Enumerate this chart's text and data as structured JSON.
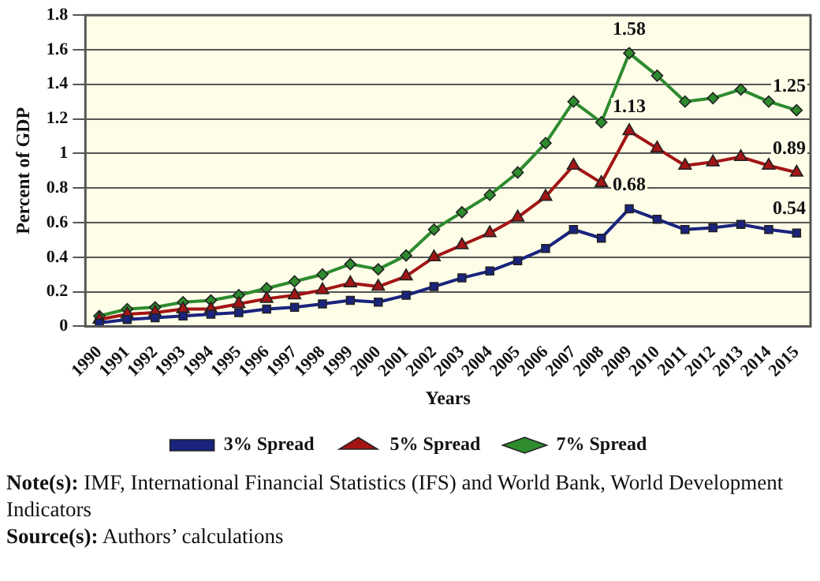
{
  "chart_data": {
    "type": "line",
    "xlabel": "Years",
    "ylabel": "Percent of GDP",
    "categories": [
      "1990",
      "1991",
      "1992",
      "1993",
      "1994",
      "1995",
      "1996",
      "1997",
      "1998",
      "1999",
      "2000",
      "2001",
      "2002",
      "2003",
      "2004",
      "2005",
      "2006",
      "2007",
      "2008",
      "2009",
      "2010",
      "2011",
      "2012",
      "2013",
      "2014",
      "2015"
    ],
    "series": [
      {
        "name": "3% Spread",
        "color": "#1a237e",
        "marker": "square",
        "values": [
          0.02,
          0.04,
          0.05,
          0.06,
          0.07,
          0.08,
          0.1,
          0.11,
          0.13,
          0.15,
          0.14,
          0.18,
          0.23,
          0.28,
          0.32,
          0.38,
          0.45,
          0.56,
          0.51,
          0.68,
          0.62,
          0.56,
          0.57,
          0.59,
          0.56,
          0.54
        ],
        "value_labels": [
          null,
          null,
          null,
          null,
          null,
          null,
          null,
          null,
          null,
          null,
          null,
          null,
          null,
          null,
          null,
          null,
          null,
          null,
          null,
          "0.68",
          null,
          null,
          null,
          null,
          null,
          "0.54"
        ]
      },
      {
        "name": "5% Spread",
        "color": "#a31515",
        "marker": "triangle",
        "values": [
          0.04,
          0.07,
          0.08,
          0.1,
          0.1,
          0.13,
          0.16,
          0.18,
          0.21,
          0.25,
          0.23,
          0.29,
          0.4,
          0.47,
          0.54,
          0.63,
          0.75,
          0.93,
          0.83,
          1.13,
          1.03,
          0.93,
          0.95,
          0.98,
          0.93,
          0.89
        ],
        "value_labels": [
          null,
          null,
          null,
          null,
          null,
          null,
          null,
          null,
          null,
          null,
          null,
          null,
          null,
          null,
          null,
          null,
          null,
          null,
          null,
          "1.13",
          null,
          null,
          null,
          null,
          null,
          "0.89"
        ]
      },
      {
        "name": "7% Spread",
        "color": "#2e8b2e",
        "marker": "diamond",
        "values": [
          0.06,
          0.1,
          0.11,
          0.14,
          0.15,
          0.18,
          0.22,
          0.26,
          0.3,
          0.36,
          0.33,
          0.41,
          0.56,
          0.66,
          0.76,
          0.89,
          1.06,
          1.3,
          1.18,
          1.58,
          1.45,
          1.3,
          1.32,
          1.37,
          1.3,
          1.25
        ],
        "value_labels": [
          null,
          null,
          null,
          null,
          null,
          null,
          null,
          null,
          null,
          null,
          null,
          null,
          null,
          null,
          null,
          null,
          null,
          null,
          null,
          "1.58",
          null,
          null,
          null,
          null,
          null,
          "1.25"
        ]
      }
    ],
    "ylim": [
      0,
      1.8
    ],
    "yticks": [
      0,
      0.2,
      0.4,
      0.6,
      0.8,
      1,
      1.2,
      1.4,
      1.6,
      1.8
    ],
    "grid": "y",
    "legend": "bottom",
    "annotations": [
      "Note(s): IMF, International Financial Statistics (IFS) and World Bank, World Development Indicators",
      "Source(s): Authors’ calculations"
    ]
  }
}
